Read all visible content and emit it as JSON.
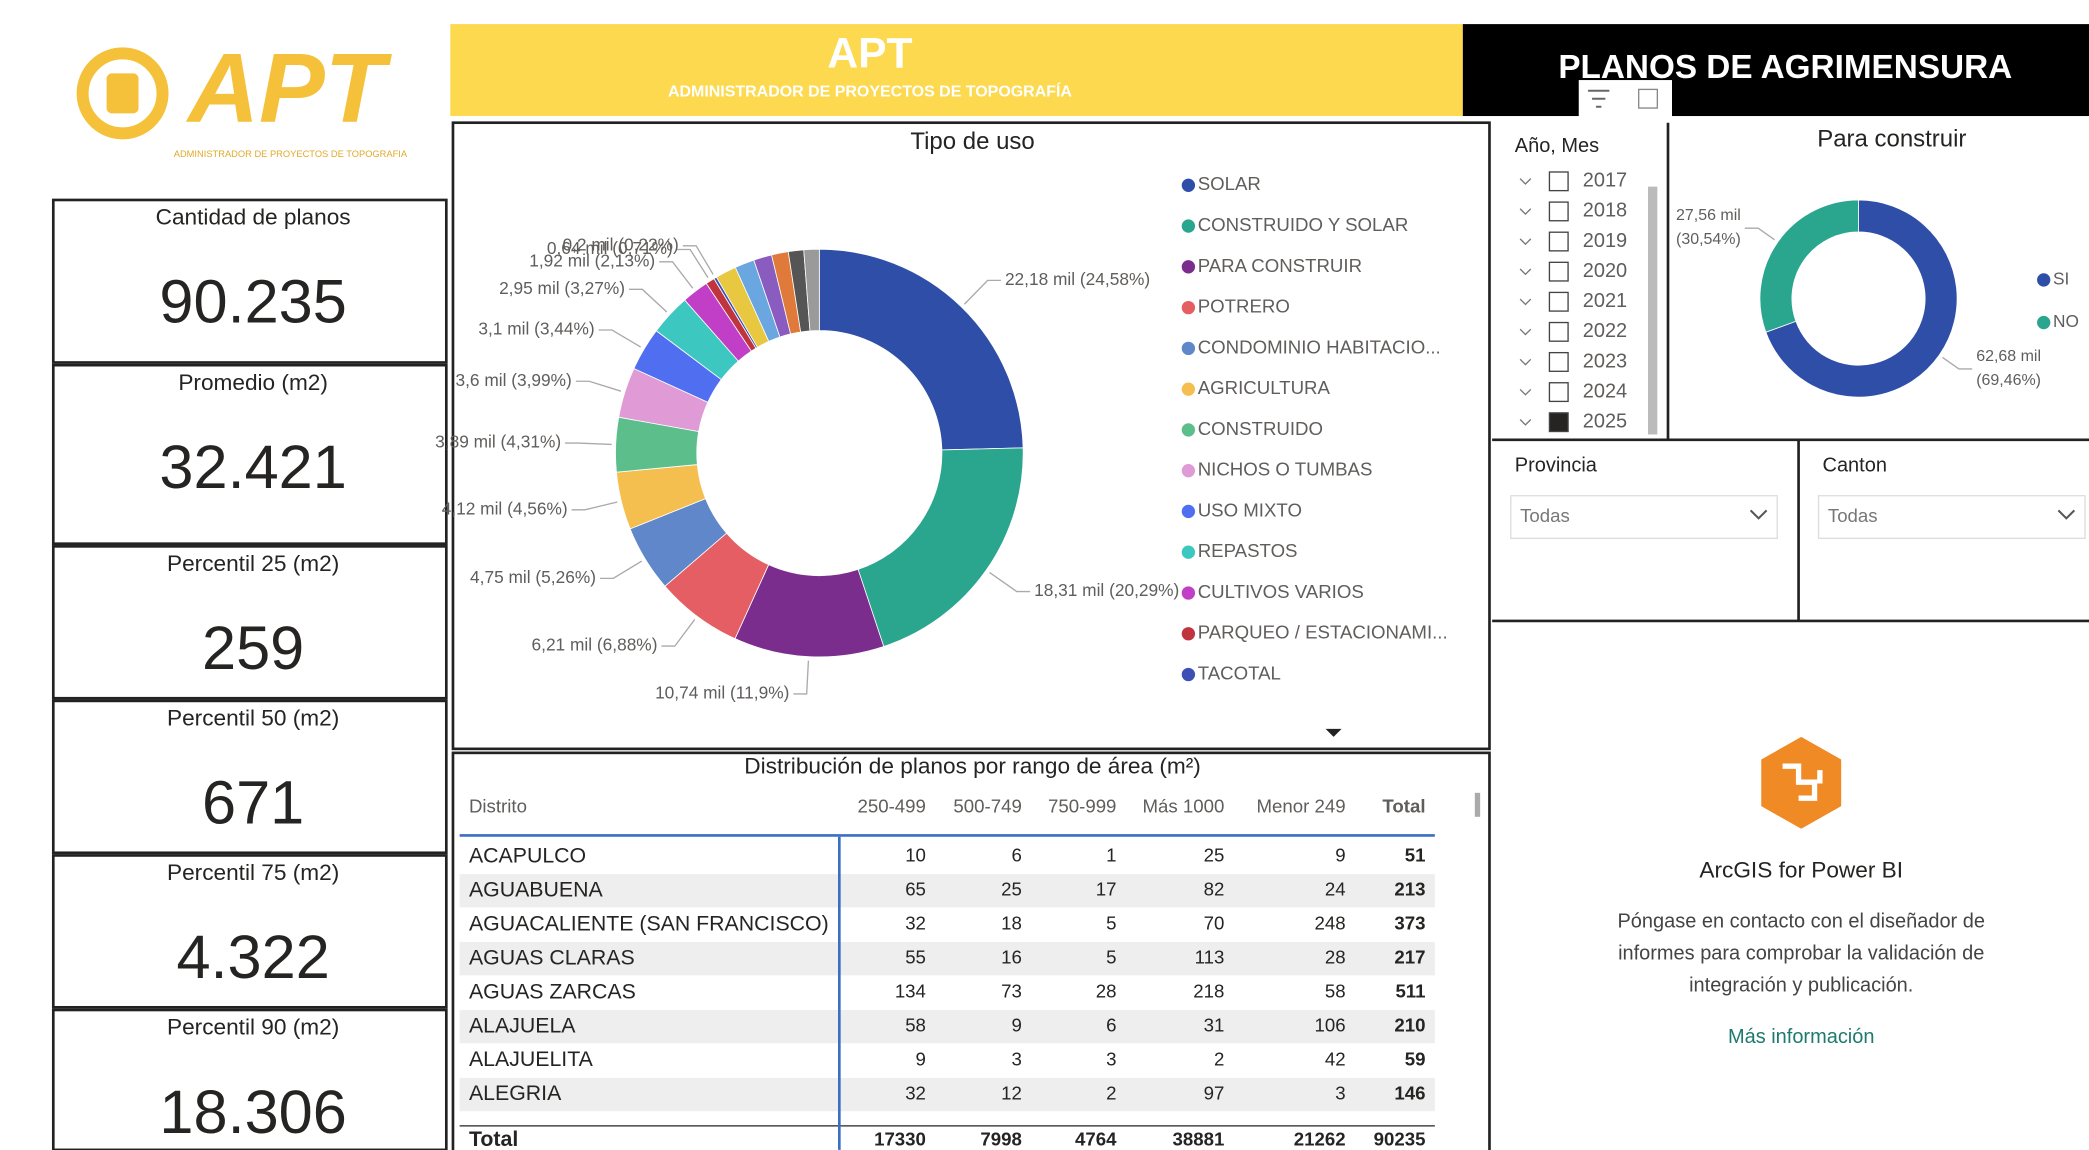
{
  "logo": {
    "title": "APT",
    "subtitle": "ADMINISTRADOR DE PROYECTOS DE TOPOGRAFIA"
  },
  "banner": {
    "title": "APT",
    "subtitle": "ADMINISTRADOR DE PROYECTOS DE TOPOGRAFÍA",
    "page_title": "PLANOS DE AGRIMENSURA"
  },
  "kpis": [
    {
      "label": "Cantidad de planos",
      "value": "90.235"
    },
    {
      "label": "Promedio (m2)",
      "value": "32.421"
    },
    {
      "label": "Percentil 25 (m2)",
      "value": "259"
    },
    {
      "label": "Percentil 50 (m2)",
      "value": "671"
    },
    {
      "label": "Percentil 75 (m2)",
      "value": "4.322"
    },
    {
      "label": "Percentil 90 (m2)",
      "value": "18.306"
    }
  ],
  "chart_data": [
    {
      "type": "donut",
      "title": "Tipo de uso",
      "categories": [
        "SOLAR",
        "CONSTRUIDO Y SOLAR",
        "PARA CONSTRUIR",
        "POTRERO",
        "CONDOMINIO HABITACIO...",
        "AGRICULTURA",
        "CONSTRUIDO",
        "NICHOS O TUMBAS",
        "USO MIXTO",
        "REPASTOS",
        "CULTIVOS VARIOS",
        "PARQUEO / ESTACIONAMI...",
        "TACOTAL",
        null,
        null,
        null,
        null,
        null,
        null
      ],
      "values": [
        22.18,
        18.31,
        10.74,
        6.21,
        4.75,
        4.12,
        3.89,
        3.6,
        3.1,
        2.95,
        1.92,
        0.64,
        0.2,
        1.5,
        1.4,
        1.3,
        1.2,
        1.1,
        1.1
      ],
      "value_labels": [
        "22,18 mil (24,58%)",
        "18,31 mil (20,29%)",
        "10,74 mil (11,9%)",
        "6,21 mil (6,88%)",
        "4,75 mil (5,26%)",
        "4,12 mil (4,56%)",
        "3,89 mil (4,31%)",
        "3,6 mil (3,99%)",
        "3,1 mil (3,44%)",
        "2,95 mil (3,27%)",
        "1,92 mil (2,13%)",
        "0,64 mil (0,71%)",
        "0,2 mil (0,22%)",
        null,
        null,
        null,
        null,
        null,
        null
      ],
      "colors": [
        "#2f4ea8",
        "#2aa58e",
        "#7b2d8e",
        "#e45e63",
        "#5f87c9",
        "#f5bf4f",
        "#5cbf8b",
        "#e09ad6",
        "#4f6ff0",
        "#3cc7c0",
        "#c13ec7",
        "#c0343e",
        "#3c4fb5",
        "#e8c840",
        "#6aa6e0",
        "#8a5cc0",
        "#e07a3a",
        "#555555",
        "#9a9a9a"
      ]
    },
    {
      "type": "donut",
      "title": "Para construir",
      "categories": [
        "SI",
        "NO"
      ],
      "values": [
        62.68,
        27.56
      ],
      "value_labels": [
        "62,68 mil (69,46%)",
        "27,56 mil (30,54%)"
      ],
      "colors": [
        "#2f4ea8",
        "#2aa58e"
      ]
    }
  ],
  "table": {
    "title": "Distribución de planos por rango de área (m²)",
    "columns": [
      "Distrito",
      "250-499",
      "500-749",
      "750-999",
      "Más 1000",
      "Menor 249",
      "Total"
    ],
    "rows": [
      [
        "ACAPULCO",
        10,
        6,
        1,
        25,
        9,
        51
      ],
      [
        "AGUABUENA",
        65,
        25,
        17,
        82,
        24,
        213
      ],
      [
        "AGUACALIENTE (SAN FRANCISCO)",
        32,
        18,
        5,
        70,
        248,
        373
      ],
      [
        "AGUAS CLARAS",
        55,
        16,
        5,
        113,
        28,
        217
      ],
      [
        "AGUAS ZARCAS",
        134,
        73,
        28,
        218,
        58,
        511
      ],
      [
        "ALAJUELA",
        58,
        9,
        6,
        31,
        106,
        210
      ],
      [
        "ALAJUELITA",
        9,
        3,
        3,
        2,
        42,
        59
      ],
      [
        "ALEGRIA",
        32,
        12,
        2,
        97,
        3,
        146
      ]
    ],
    "total": [
      "Total",
      17330,
      7998,
      4764,
      38881,
      21262,
      90235
    ]
  },
  "year_slicer": {
    "title": "Año, Mes",
    "items": [
      {
        "label": 2017,
        "checked": false
      },
      {
        "label": 2018,
        "checked": false
      },
      {
        "label": 2019,
        "checked": false
      },
      {
        "label": 2020,
        "checked": false
      },
      {
        "label": 2021,
        "checked": false
      },
      {
        "label": 2022,
        "checked": false
      },
      {
        "label": 2023,
        "checked": false
      },
      {
        "label": 2024,
        "checked": false
      },
      {
        "label": 2025,
        "checked": true
      }
    ]
  },
  "provincia": {
    "title": "Provincia",
    "value": "Todas"
  },
  "canton": {
    "title": "Canton",
    "value": "Todas"
  },
  "arcgis": {
    "title": "ArcGIS for Power BI",
    "message": [
      "Póngase en contacto con el diseñador de",
      "informes para comprobar la validación de",
      "integración y publicación."
    ],
    "link": "Más información"
  }
}
